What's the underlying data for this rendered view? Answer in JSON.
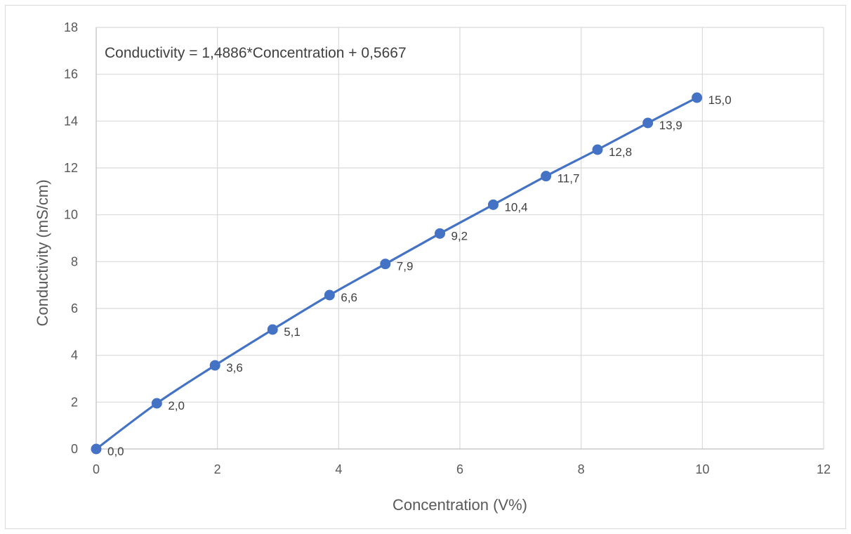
{
  "chart_data": {
    "type": "scatter",
    "title": "",
    "xlabel": "Concentration (V%)",
    "ylabel": "Conductivity  (mS/cm)",
    "xlim": [
      0,
      12
    ],
    "ylim": [
      0,
      18
    ],
    "x_ticks": [
      "0",
      "2",
      "4",
      "6",
      "8",
      "10",
      "12"
    ],
    "y_ticks": [
      "0",
      "2",
      "4",
      "6",
      "8",
      "10",
      "12",
      "14",
      "16",
      "18"
    ],
    "x_tick_values": [
      0,
      2,
      4,
      6,
      8,
      10,
      12
    ],
    "y_tick_values": [
      0,
      2,
      4,
      6,
      8,
      10,
      12,
      14,
      16,
      18
    ],
    "grid": true,
    "legend": "none",
    "equation": "Conductivity = 1,4886*Concentration + 0,5667",
    "series": [
      {
        "color": "#4472c4",
        "marker": "circle",
        "line": "smooth",
        "x": [
          0,
          1.0,
          1.96,
          2.91,
          3.85,
          4.77,
          5.67,
          6.55,
          7.42,
          8.27,
          9.1,
          9.91
        ],
        "y": [
          0.0,
          1.95,
          3.57,
          5.1,
          6.57,
          7.9,
          9.2,
          10.43,
          11.65,
          12.78,
          13.92,
          15.0
        ],
        "labels": [
          "0,0",
          "2,0",
          "3,6",
          "5,1",
          "6,6",
          "7,9",
          "9,2",
          "10,4",
          "11,7",
          "12,8",
          "13,9",
          "15,0"
        ]
      }
    ]
  }
}
